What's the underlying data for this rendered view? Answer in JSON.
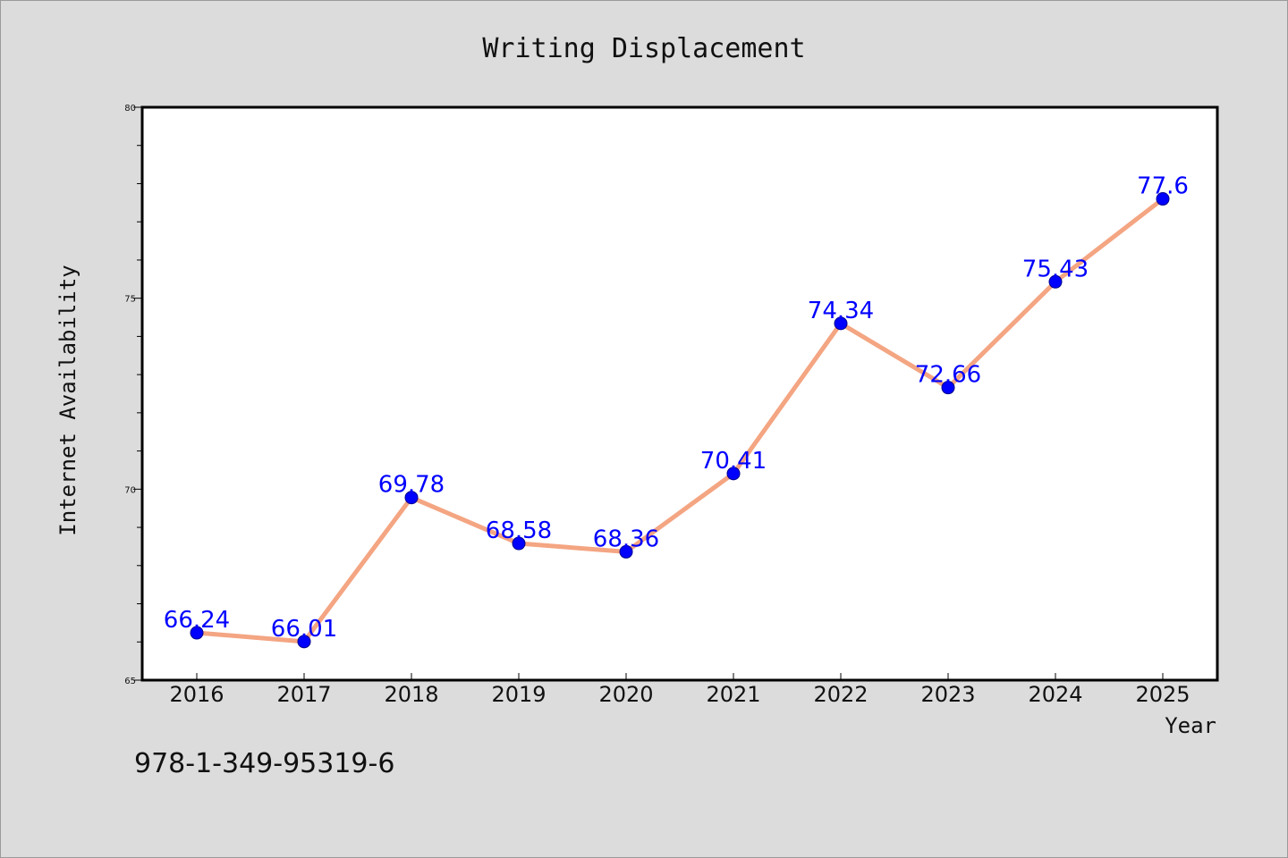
{
  "chart_data": {
    "type": "line",
    "title": "Writing Displacement",
    "xlabel": "Year",
    "ylabel": "Internet Availability",
    "x": [
      "2016",
      "2017",
      "2018",
      "2019",
      "2020",
      "2021",
      "2022",
      "2023",
      "2024",
      "2025"
    ],
    "series": [
      {
        "values": [
          66.24,
          66.01,
          69.78,
          68.58,
          68.36,
          70.41,
          74.34,
          72.66,
          75.43,
          77.6
        ],
        "labels": [
          "66.24",
          "66.01",
          "69.78",
          "68.58",
          "68.36",
          "70.41",
          "74.34",
          "72.66",
          "75.43",
          "77.6"
        ]
      }
    ],
    "ylim": [
      65,
      80
    ],
    "yticks": [
      "65",
      "70",
      "75",
      "80"
    ],
    "grid": false,
    "line_color": "#f4a582",
    "marker_color": "#0000ff",
    "background_color": "#dcdcdc",
    "plot_background": "#ffffff"
  },
  "footer": {
    "isbn": "978-1-349-95319-6"
  }
}
